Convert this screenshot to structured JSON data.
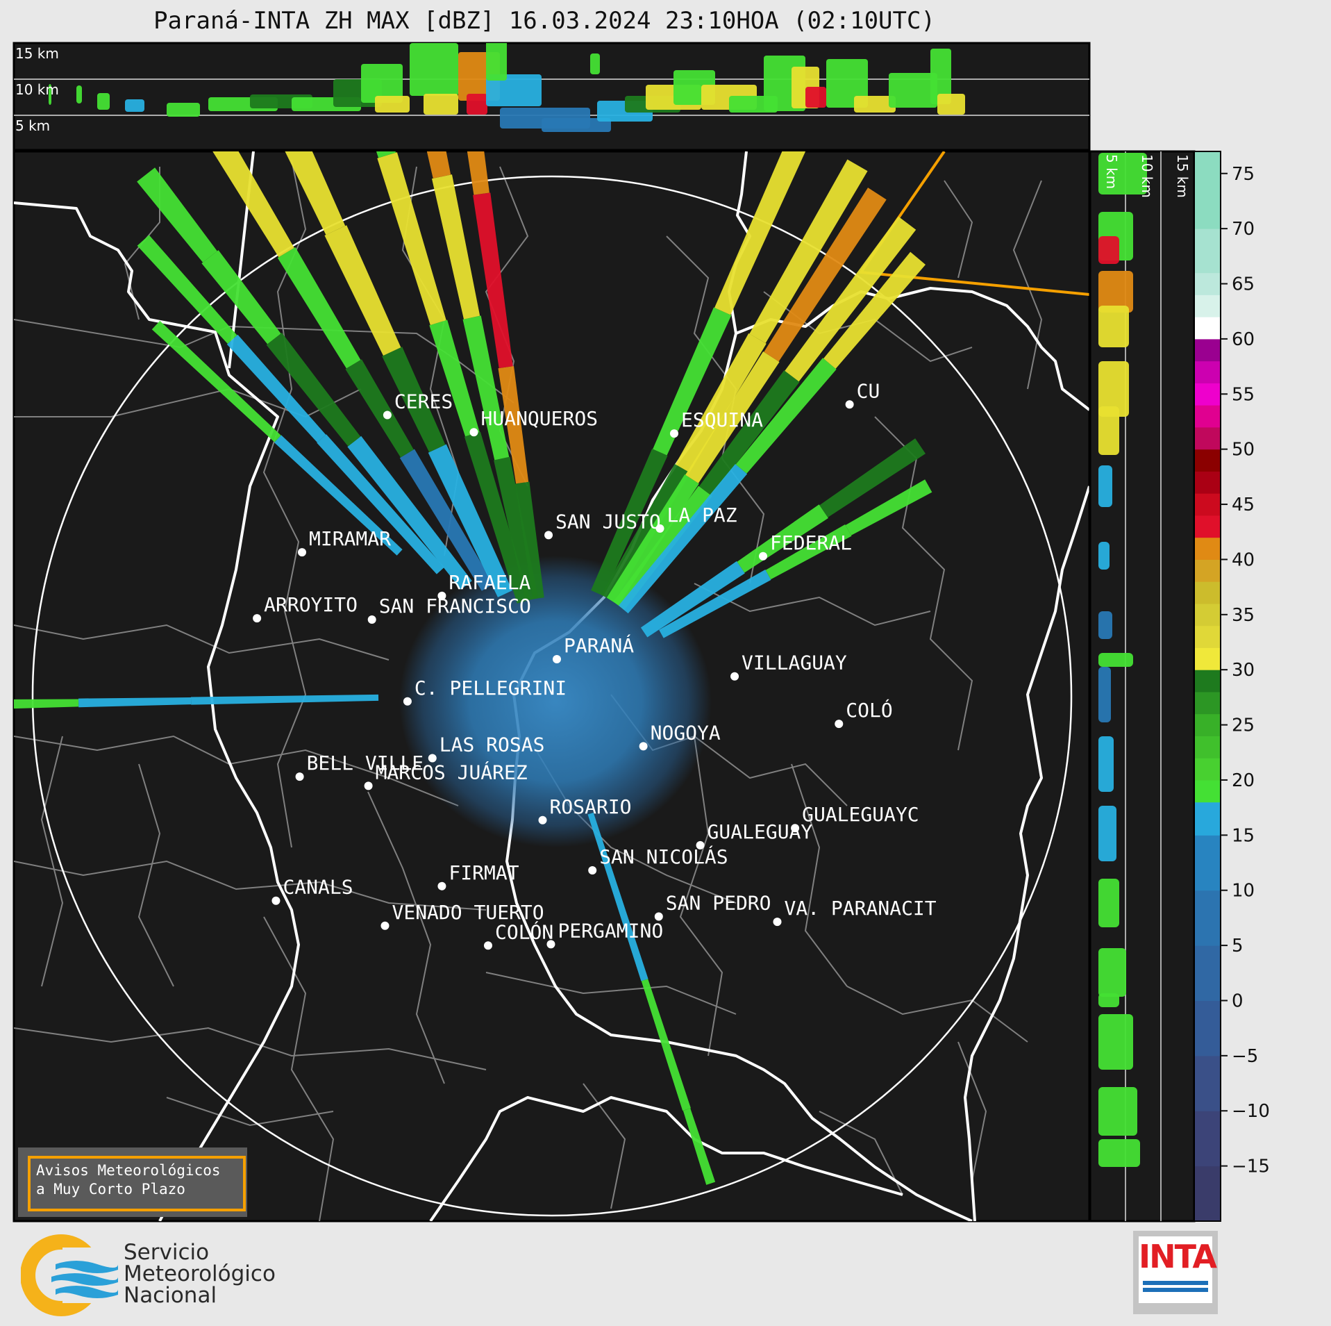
{
  "title": "Paraná-INTA ZH MAX [dBZ] 16.03.2024 23:10HOA (02:10UTC)",
  "top_panel": {
    "km_labels": [
      "15 km",
      "10 km",
      "5 km"
    ]
  },
  "side_panel": {
    "km_labels": [
      "5 km",
      "10 km",
      "15 km"
    ]
  },
  "colorbar": {
    "ticks": [
      "75",
      "70",
      "65",
      "60",
      "55",
      "50",
      "45",
      "40",
      "35",
      "30",
      "25",
      "20",
      "15",
      "10",
      "5",
      "0",
      "−5",
      "−10",
      "−15"
    ],
    "range_dbz": [
      -20,
      77
    ],
    "colors": {
      "ice_high": "#8cdcc0",
      "white": "#ffffff",
      "magenta": "#b000b0",
      "darkred": "#8b0000",
      "red": "#e0102a",
      "orange": "#e08a14",
      "yellow": "#e8e030",
      "green_dark": "#1e7a1e",
      "green_light": "#44e034",
      "cyan": "#28b0e0",
      "blue": "#2878b4",
      "navy": "#303868"
    }
  },
  "cities": [
    {
      "name": "CERES",
      "lon": -61.95,
      "lat": -29.88
    },
    {
      "name": "HUANQUEROS",
      "lon": -61.22,
      "lat": -30.01
    },
    {
      "name": "ESQUINA",
      "lon": -59.53,
      "lat": -30.02
    },
    {
      "name": "CU",
      "lon": -58.05,
      "lat": -29.8
    },
    {
      "name": "SAN JUSTO",
      "lon": -60.59,
      "lat": -30.79
    },
    {
      "name": "LA PAZ",
      "lon": -59.65,
      "lat": -30.74
    },
    {
      "name": "MIRAMAR",
      "lon": -62.67,
      "lat": -30.92
    },
    {
      "name": "FEDERAL",
      "lon": -58.78,
      "lat": -30.95
    },
    {
      "name": "RAFAELA",
      "lon": -61.49,
      "lat": -31.25
    },
    {
      "name": "ARROYITO",
      "lon": -63.05,
      "lat": -31.42
    },
    {
      "name": "SAN FRANCISCO",
      "lon": -62.08,
      "lat": -31.43
    },
    {
      "name": "PARANÁ",
      "lon": -60.52,
      "lat": -31.73
    },
    {
      "name": "VILLAGUAY",
      "lon": -59.02,
      "lat": -31.86
    },
    {
      "name": "C. PELLEGRINI",
      "lon": -61.78,
      "lat": -32.05
    },
    {
      "name": "COLÓ",
      "lon": -58.14,
      "lat": -32.22
    },
    {
      "name": "NOGOYA",
      "lon": -59.79,
      "lat": -32.39
    },
    {
      "name": "LAS ROSAS",
      "lon": -61.57,
      "lat": -32.48
    },
    {
      "name": "BELL VILLE",
      "lon": -62.69,
      "lat": -32.62
    },
    {
      "name": "MARCOS JUÁREZ",
      "lon": -62.11,
      "lat": -32.69
    },
    {
      "name": "ROSARIO",
      "lon": -60.64,
      "lat": -32.95
    },
    {
      "name": "GUALEGUAYC",
      "lon": -58.51,
      "lat": -33.01
    },
    {
      "name": "GUALEGUAY",
      "lon": -59.31,
      "lat": -33.14
    },
    {
      "name": "SAN NICOLÁS",
      "lon": -60.22,
      "lat": -33.33
    },
    {
      "name": "FIRMAT",
      "lon": -61.49,
      "lat": -33.45
    },
    {
      "name": "CANALS",
      "lon": -62.89,
      "lat": -33.56
    },
    {
      "name": "SAN PEDRO",
      "lon": -59.66,
      "lat": -33.68
    },
    {
      "name": "VA. PARANACIT",
      "lon": -58.66,
      "lat": -33.72
    },
    {
      "name": "VENADO TUERTO",
      "lon": -61.97,
      "lat": -33.75
    },
    {
      "name": "COLÓN",
      "lon": -61.1,
      "lat": -33.9
    },
    {
      "name": "PERGAMINO",
      "lon": -60.57,
      "lat": -33.89
    }
  ],
  "warning_box": {
    "line1": "Avisos Meteorológicos",
    "line2": "a Muy Corto Plazo"
  },
  "smn_logo": {
    "line1": "Servicio",
    "line2": "Meteorológico",
    "line3": "Nacional"
  },
  "inta_logo": {
    "text": "INTA"
  }
}
